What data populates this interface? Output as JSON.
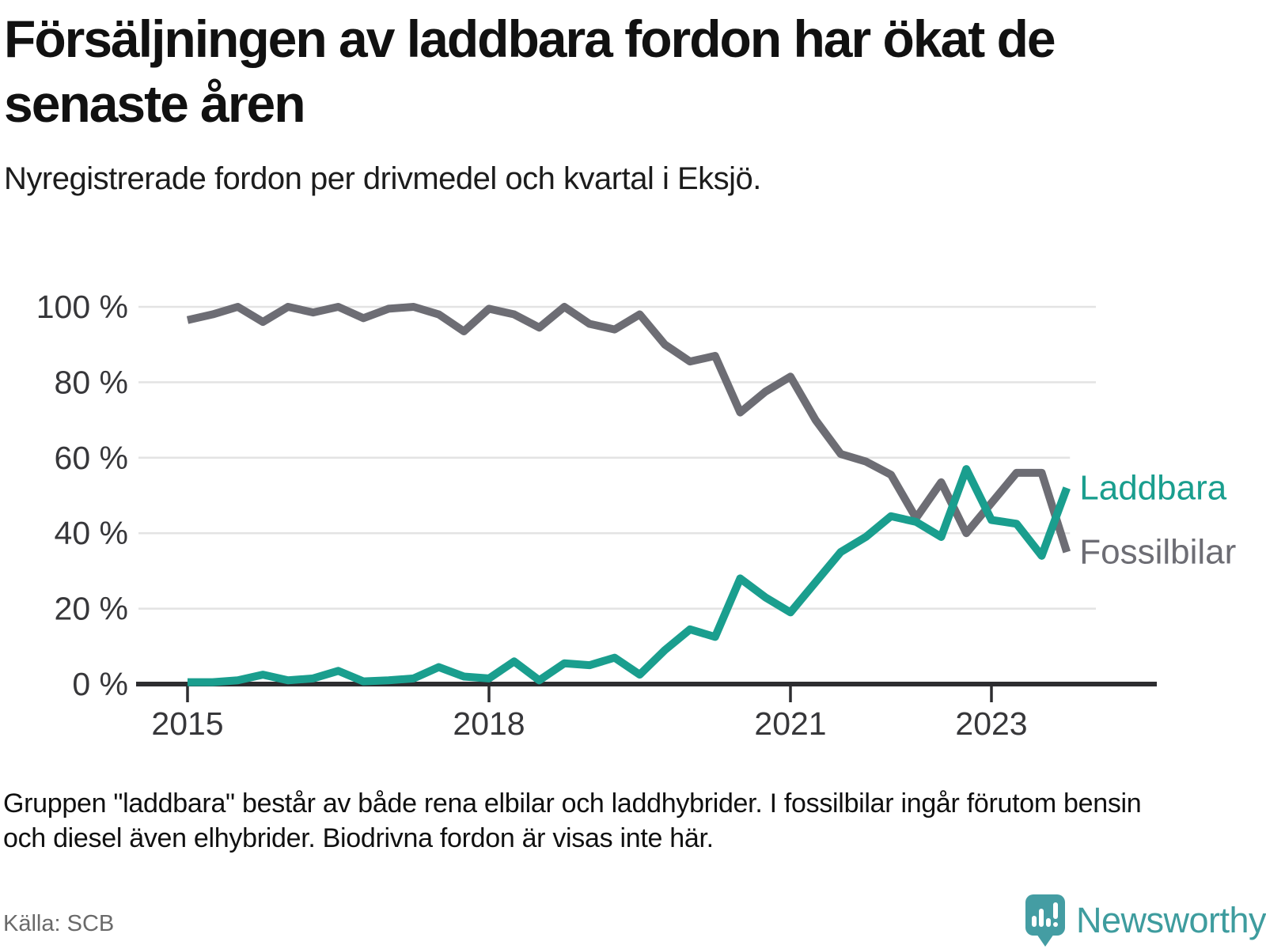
{
  "header": {
    "title_lines": [
      "Försäljningen av laddbara fordon har ökat de",
      "senaste åren"
    ],
    "subtitle": "Nyregistrerade fordon per drivmedel och kvartal i Eksjö."
  },
  "chart_data": {
    "type": "line",
    "x": [
      "2015 Q1",
      "2015 Q2",
      "2015 Q3",
      "2015 Q4",
      "2016 Q1",
      "2016 Q2",
      "2016 Q3",
      "2016 Q4",
      "2017 Q1",
      "2017 Q2",
      "2017 Q3",
      "2017 Q4",
      "2018 Q1",
      "2018 Q2",
      "2018 Q3",
      "2018 Q4",
      "2019 Q1",
      "2019 Q2",
      "2019 Q3",
      "2019 Q4",
      "2020 Q1",
      "2020 Q2",
      "2020 Q3",
      "2020 Q4",
      "2021 Q1",
      "2021 Q2",
      "2021 Q3",
      "2021 Q4",
      "2022 Q1",
      "2022 Q2",
      "2022 Q3",
      "2022 Q4",
      "2023 Q1",
      "2023 Q2",
      "2023 Q3",
      "2023 Q4"
    ],
    "series": [
      {
        "name": "Fossilbilar",
        "color": "#6d6d74",
        "values": [
          96.5,
          98,
          100,
          96,
          100,
          98.5,
          100,
          97,
          99.5,
          100,
          98,
          93.5,
          99.5,
          98,
          94.5,
          100,
          95.5,
          94,
          98,
          90,
          85.5,
          87,
          72,
          77.5,
          81.5,
          70,
          61,
          59,
          55.5,
          44,
          53.5,
          40,
          48,
          56,
          56,
          35
        ]
      },
      {
        "name": "Laddbara",
        "color": "#1a9e8e",
        "values": [
          0.5,
          0.5,
          1,
          2.5,
          1,
          1.5,
          3.5,
          0.7,
          1,
          1.5,
          4.5,
          2,
          1.5,
          6,
          1,
          5.5,
          5,
          7,
          2.5,
          9,
          14.5,
          12.5,
          28,
          23,
          19,
          27,
          35,
          39,
          44.5,
          43,
          39,
          57,
          43.5,
          42.5,
          34,
          52
        ]
      }
    ],
    "ylim": [
      0,
      100
    ],
    "yticks": [
      {
        "v": 0,
        "label": "0 %"
      },
      {
        "v": 20,
        "label": "20 %"
      },
      {
        "v": 40,
        "label": "40 %"
      },
      {
        "v": 60,
        "label": "60 %"
      },
      {
        "v": 80,
        "label": "80 %"
      },
      {
        "v": 100,
        "label": "100 %"
      }
    ],
    "xticks": [
      {
        "i": 0,
        "label": "2015"
      },
      {
        "i": 12,
        "label": "2018"
      },
      {
        "i": 24,
        "label": "2021"
      },
      {
        "i": 32,
        "label": "2023"
      }
    ],
    "grid": "horizontal",
    "legend": "line-end-labels",
    "title": "Försäljningen av laddbara fordon har ökat de senaste åren",
    "xlabel": "",
    "ylabel": ""
  },
  "footnote": {
    "lines": [
      "Gruppen \"laddbara\" består av både rena elbilar och laddhybrider. I fossilbilar ingår förutom bensin",
      "och diesel även elhybrider. Biodrivna fordon är visas inte här."
    ]
  },
  "source": {
    "label": "Källa: SCB"
  },
  "branding": {
    "name": "Newsworthy"
  },
  "colors": {
    "laddbara": "#1a9e8e",
    "fossilbilar": "#6d6d74",
    "grid": "#e3e3e3",
    "axis": "#2d2d30",
    "tick_text": "#37373a",
    "brand": "#3e9c9e"
  }
}
